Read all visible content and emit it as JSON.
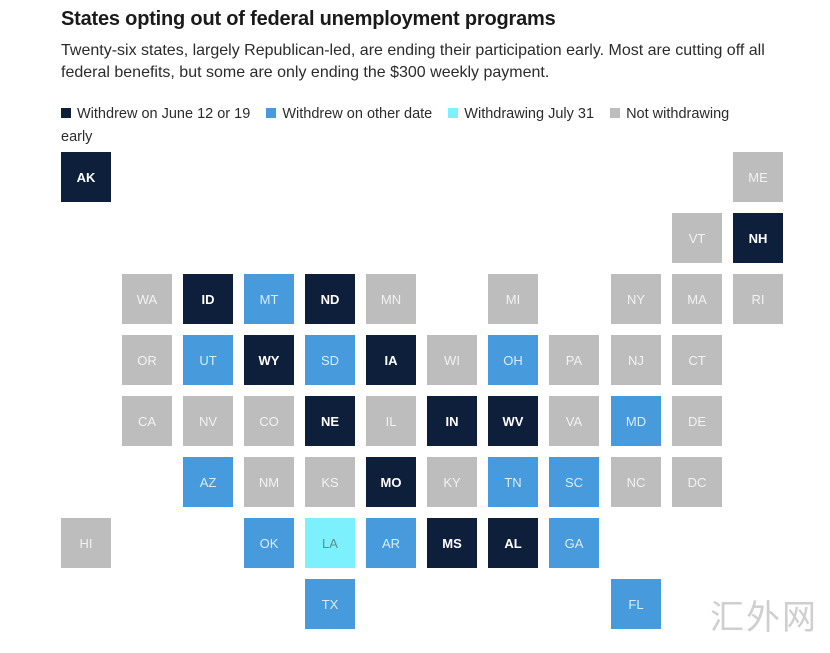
{
  "header": {
    "title": "States opting out of federal unemployment programs",
    "subtitle": "Twenty-six states, largely Republican-led, are ending their participation early. Most are cutting off all federal benefits, but some are only ending the $300 weekly payment."
  },
  "legend": [
    {
      "key": "june",
      "label": "Withdrew on June 12 or 19",
      "color": "#0e1f3c"
    },
    {
      "key": "other",
      "label": "Withdrew on other date",
      "color": "#479bdc"
    },
    {
      "key": "july",
      "label": "Withdrawing July 31",
      "color": "#7cf0fc"
    },
    {
      "key": "not",
      "label": "Not withdrawing early",
      "color": "#bdbdbd"
    }
  ],
  "states": [
    {
      "abbr": "AK",
      "status": "june"
    },
    {
      "abbr": "ME",
      "status": "not"
    },
    {
      "abbr": "VT",
      "status": "not"
    },
    {
      "abbr": "NH",
      "status": "june"
    },
    {
      "abbr": "WA",
      "status": "not"
    },
    {
      "abbr": "ID",
      "status": "june"
    },
    {
      "abbr": "MT",
      "status": "other"
    },
    {
      "abbr": "ND",
      "status": "june"
    },
    {
      "abbr": "MN",
      "status": "not"
    },
    {
      "abbr": "MI",
      "status": "not"
    },
    {
      "abbr": "NY",
      "status": "not"
    },
    {
      "abbr": "MA",
      "status": "not"
    },
    {
      "abbr": "RI",
      "status": "not"
    },
    {
      "abbr": "OR",
      "status": "not"
    },
    {
      "abbr": "UT",
      "status": "other"
    },
    {
      "abbr": "WY",
      "status": "june"
    },
    {
      "abbr": "SD",
      "status": "other"
    },
    {
      "abbr": "IA",
      "status": "june"
    },
    {
      "abbr": "WI",
      "status": "not"
    },
    {
      "abbr": "OH",
      "status": "other"
    },
    {
      "abbr": "PA",
      "status": "not"
    },
    {
      "abbr": "NJ",
      "status": "not"
    },
    {
      "abbr": "CT",
      "status": "not"
    },
    {
      "abbr": "CA",
      "status": "not"
    },
    {
      "abbr": "NV",
      "status": "not"
    },
    {
      "abbr": "CO",
      "status": "not"
    },
    {
      "abbr": "NE",
      "status": "june"
    },
    {
      "abbr": "IL",
      "status": "not"
    },
    {
      "abbr": "IN",
      "status": "june"
    },
    {
      "abbr": "WV",
      "status": "june"
    },
    {
      "abbr": "VA",
      "status": "not"
    },
    {
      "abbr": "MD",
      "status": "other"
    },
    {
      "abbr": "DE",
      "status": "not"
    },
    {
      "abbr": "AZ",
      "status": "other"
    },
    {
      "abbr": "NM",
      "status": "not"
    },
    {
      "abbr": "KS",
      "status": "not"
    },
    {
      "abbr": "MO",
      "status": "june"
    },
    {
      "abbr": "KY",
      "status": "not"
    },
    {
      "abbr": "TN",
      "status": "other"
    },
    {
      "abbr": "SC",
      "status": "other"
    },
    {
      "abbr": "NC",
      "status": "not"
    },
    {
      "abbr": "DC",
      "status": "not"
    },
    {
      "abbr": "HI",
      "status": "not"
    },
    {
      "abbr": "OK",
      "status": "other"
    },
    {
      "abbr": "LA",
      "status": "july"
    },
    {
      "abbr": "AR",
      "status": "other"
    },
    {
      "abbr": "MS",
      "status": "june"
    },
    {
      "abbr": "AL",
      "status": "june"
    },
    {
      "abbr": "GA",
      "status": "other"
    },
    {
      "abbr": "TX",
      "status": "other"
    },
    {
      "abbr": "FL",
      "status": "other"
    }
  ],
  "watermark": "汇外网"
}
